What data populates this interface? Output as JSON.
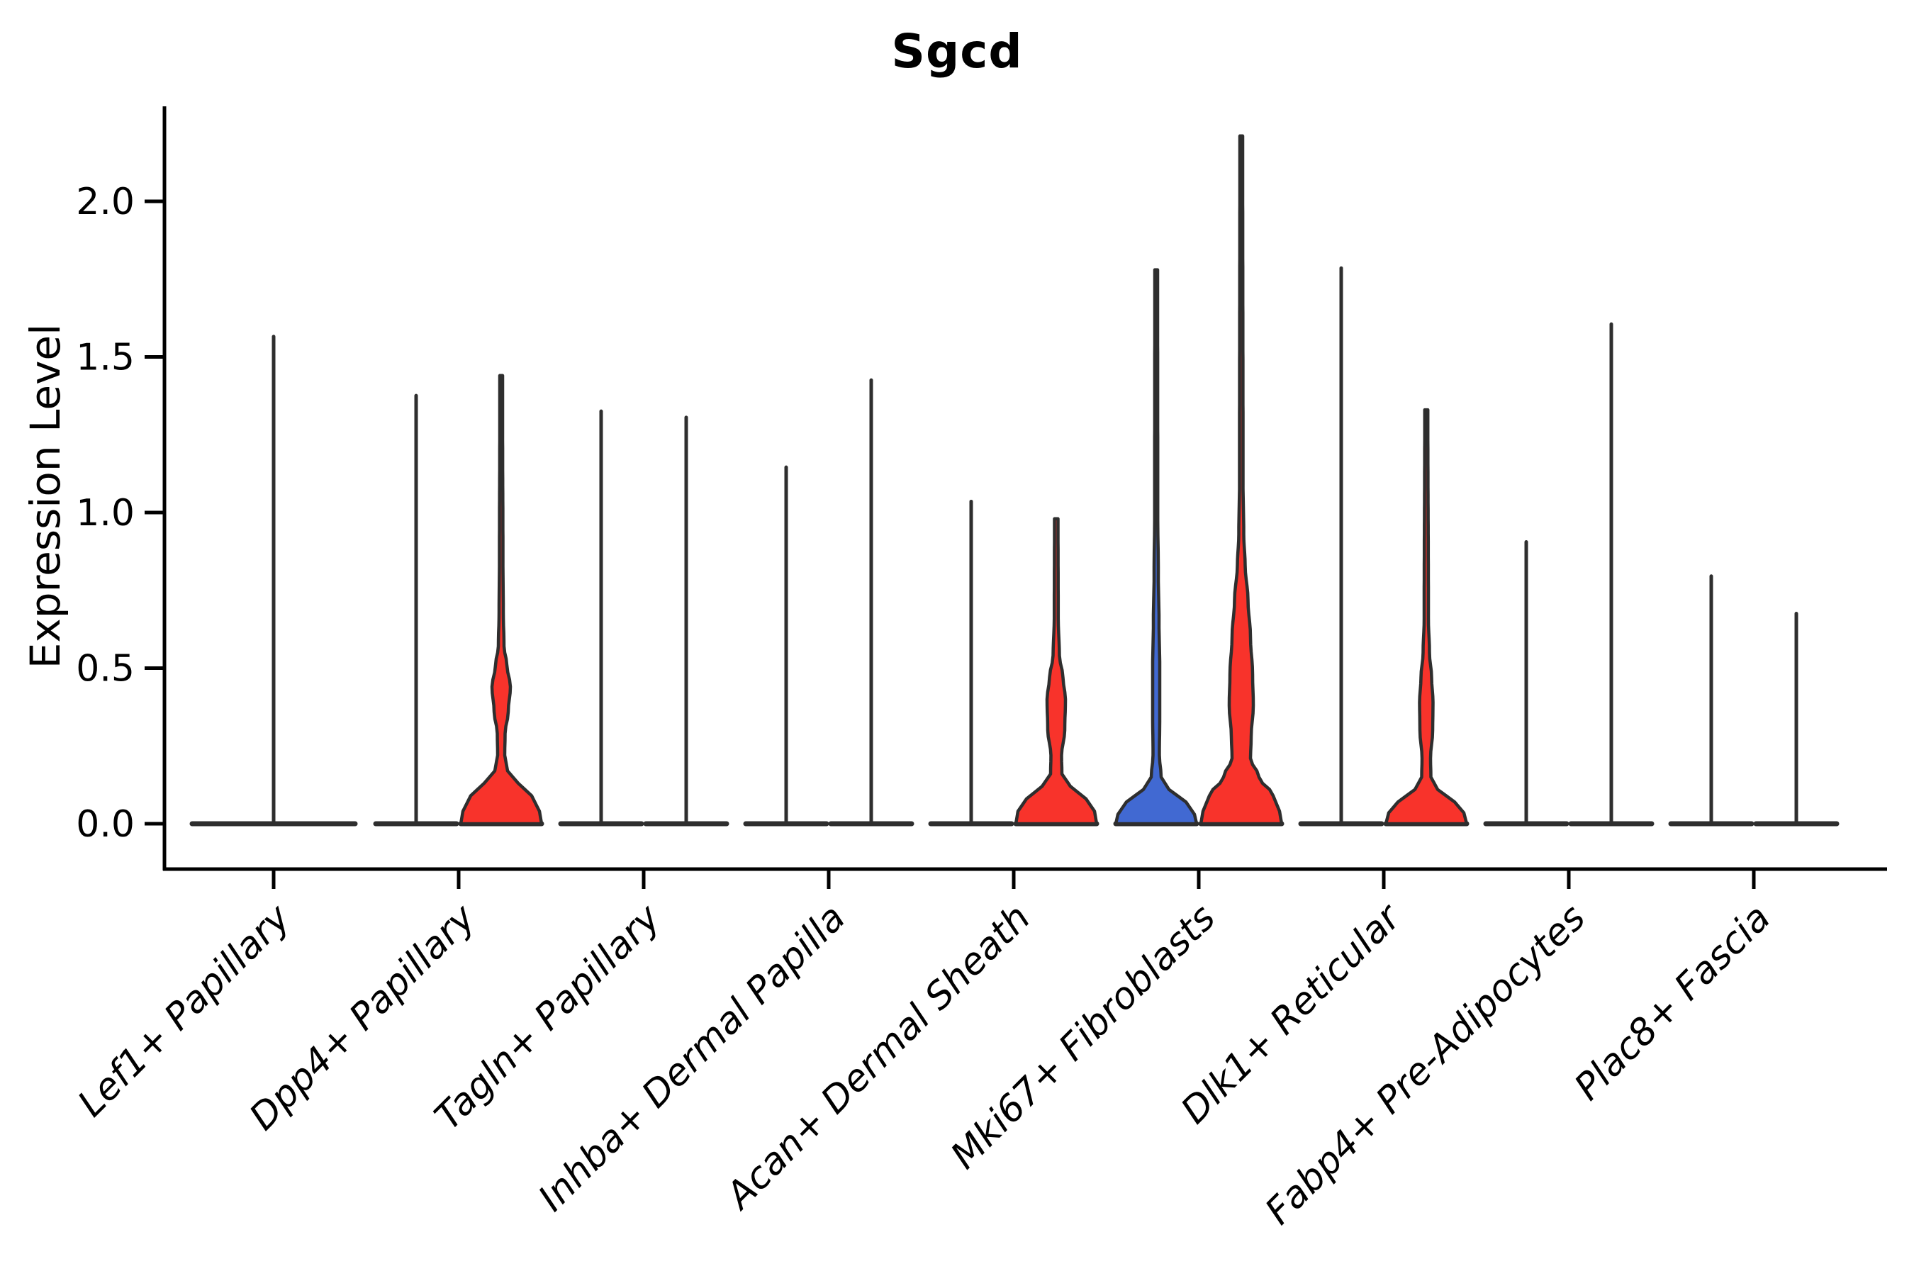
{
  "chart_data": {
    "type": "violin",
    "title": "Sgcd",
    "ylabel": "Expression Level",
    "xlabel": "",
    "ylim": [
      -0.07,
      2.32
    ],
    "grid": false,
    "legend": "none",
    "y_ticks": [
      {
        "value": 0.0,
        "label": "0.0"
      },
      {
        "value": 0.5,
        "label": "0.5"
      },
      {
        "value": 1.0,
        "label": "1.0"
      },
      {
        "value": 1.5,
        "label": "1.5"
      },
      {
        "value": 2.0,
        "label": "2.0"
      }
    ],
    "categories": [
      "Lef1+ Papillary",
      "Dpp4+ Papillary",
      "Tagln+ Papillary",
      "Inhba+ Dermal Papilla",
      "Acan+ Dermal Sheath",
      "Mki67+ Fibroblasts",
      "Dlk1+ Reticular",
      "Fabp4+ Pre-Adipocytes",
      "Plac8+ Fascia"
    ],
    "colors": {
      "red": "#F8332B",
      "blue": "#4169D2",
      "outline": "#2E2E2E",
      "axis": "#000000"
    },
    "violins": [
      {
        "category": 0,
        "side": "center",
        "color": "none",
        "max_expression": 1.57,
        "profile": null
      },
      {
        "category": 1,
        "side": "left",
        "color": "none",
        "max_expression": 1.38,
        "profile": null
      },
      {
        "category": 1,
        "side": "right",
        "color": "red",
        "max_expression": 1.44,
        "profile": [
          [
            0,
            57
          ],
          [
            0.04,
            54
          ],
          [
            0.09,
            43
          ],
          [
            0.13,
            24
          ],
          [
            0.17,
            9
          ],
          [
            0.22,
            5
          ],
          [
            0.29,
            5.5
          ],
          [
            0.36,
            10
          ],
          [
            0.44,
            13
          ],
          [
            0.51,
            8
          ],
          [
            0.57,
            4
          ],
          [
            0.68,
            3
          ],
          [
            0.85,
            2.5
          ],
          [
            1.3,
            2
          ],
          [
            1.44,
            2
          ]
        ]
      },
      {
        "category": 2,
        "side": "left",
        "color": "none",
        "max_expression": 1.33,
        "profile": null
      },
      {
        "category": 2,
        "side": "right",
        "color": "none",
        "max_expression": 1.31,
        "profile": null
      },
      {
        "category": 3,
        "side": "left",
        "color": "none",
        "max_expression": 1.15,
        "profile": null
      },
      {
        "category": 3,
        "side": "right",
        "color": "none",
        "max_expression": 1.43,
        "profile": null
      },
      {
        "category": 4,
        "side": "left",
        "color": "none",
        "max_expression": 1.04,
        "profile": null
      },
      {
        "category": 4,
        "side": "right",
        "color": "red",
        "max_expression": 0.98,
        "profile": [
          [
            0,
            57
          ],
          [
            0.04,
            54
          ],
          [
            0.08,
            42
          ],
          [
            0.12,
            20
          ],
          [
            0.16,
            8
          ],
          [
            0.22,
            7.5
          ],
          [
            0.3,
            12
          ],
          [
            0.4,
            13
          ],
          [
            0.47,
            9.5
          ],
          [
            0.54,
            4.5
          ],
          [
            0.66,
            2.8
          ],
          [
            0.98,
            2.5
          ]
        ]
      },
      {
        "category": 5,
        "side": "left",
        "color": "blue",
        "max_expression": 1.78,
        "profile": [
          [
            0,
            57
          ],
          [
            0.03,
            54
          ],
          [
            0.07,
            42
          ],
          [
            0.11,
            18
          ],
          [
            0.15,
            7
          ],
          [
            0.22,
            4.5
          ],
          [
            0.35,
            5
          ],
          [
            0.5,
            5
          ],
          [
            0.65,
            4
          ],
          [
            0.8,
            3
          ],
          [
            1.0,
            2.2
          ],
          [
            1.78,
            2
          ]
        ]
      },
      {
        "category": 5,
        "side": "right",
        "color": "red",
        "max_expression": 2.21,
        "profile": [
          [
            0,
            57
          ],
          [
            0.04,
            54
          ],
          [
            0.09,
            45
          ],
          [
            0.15,
            25
          ],
          [
            0.21,
            13
          ],
          [
            0.28,
            14
          ],
          [
            0.38,
            17
          ],
          [
            0.48,
            16
          ],
          [
            0.6,
            13
          ],
          [
            0.72,
            9.5
          ],
          [
            0.83,
            5.5
          ],
          [
            0.93,
            3.5
          ],
          [
            1.1,
            2.5
          ],
          [
            2.21,
            2
          ]
        ]
      },
      {
        "category": 6,
        "side": "left",
        "color": "none",
        "max_expression": 1.79,
        "profile": null
      },
      {
        "category": 6,
        "side": "right",
        "color": "red",
        "max_expression": 1.33,
        "profile": [
          [
            0,
            57
          ],
          [
            0.035,
            53
          ],
          [
            0.07,
            40
          ],
          [
            0.11,
            16
          ],
          [
            0.15,
            6.5
          ],
          [
            0.21,
            6
          ],
          [
            0.3,
            9
          ],
          [
            0.39,
            9.5
          ],
          [
            0.47,
            7.5
          ],
          [
            0.55,
            4.5
          ],
          [
            0.66,
            3
          ],
          [
            1.33,
            2.2
          ]
        ]
      },
      {
        "category": 7,
        "side": "left",
        "color": "none",
        "max_expression": 0.91,
        "profile": null
      },
      {
        "category": 7,
        "side": "right",
        "color": "none",
        "max_expression": 1.61,
        "profile": null
      },
      {
        "category": 8,
        "side": "left",
        "color": "none",
        "max_expression": 0.8,
        "profile": null
      },
      {
        "category": 8,
        "side": "right",
        "color": "none",
        "max_expression": 0.68,
        "profile": null
      }
    ]
  }
}
